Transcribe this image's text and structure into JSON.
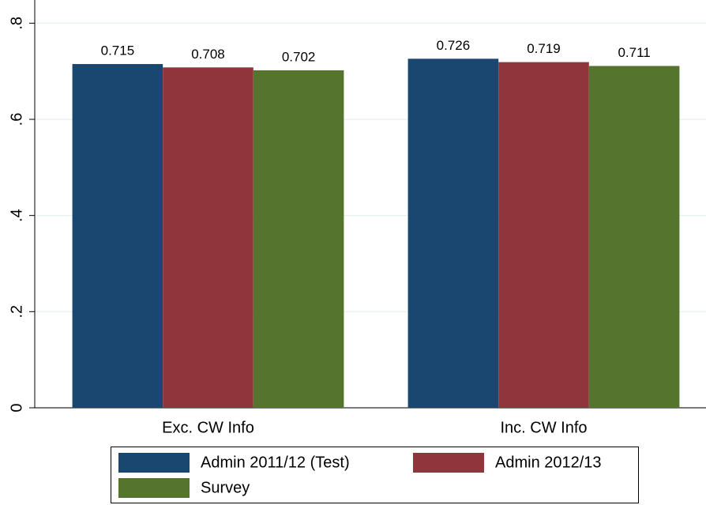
{
  "chart_data": {
    "type": "bar",
    "categories": [
      "Exc. CW Info",
      "Inc. CW Info"
    ],
    "series": [
      {
        "name": "Admin 2011/12 (Test)",
        "color": "#1a476f",
        "values": [
          0.715,
          0.726
        ]
      },
      {
        "name": "Admin 2012/13",
        "color": "#90353b",
        "values": [
          0.708,
          0.719
        ]
      },
      {
        "name": "Survey",
        "color": "#55752f",
        "values": [
          0.702,
          0.711
        ]
      }
    ],
    "ylim": [
      0,
      0.84
    ],
    "yticks": [
      0,
      {
        "value": 0.2,
        "label": ".2"
      },
      {
        "value": 0.4,
        "label": ".4"
      },
      {
        "value": 0.6,
        "label": ".6"
      },
      {
        "value": 0.8,
        "label": ".8"
      }
    ],
    "grid": true
  }
}
